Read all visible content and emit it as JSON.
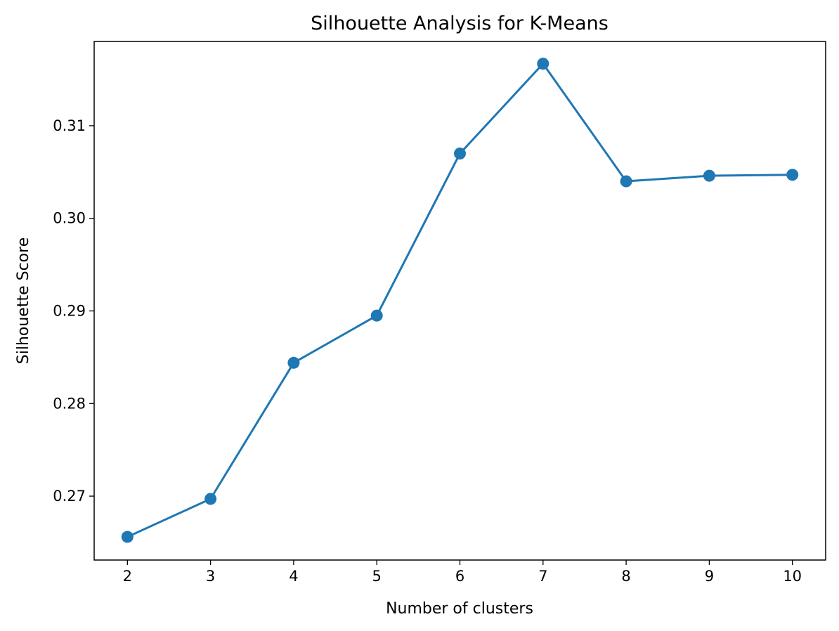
{
  "chart_data": {
    "type": "line",
    "title": "Silhouette Analysis for K-Means",
    "xlabel": "Number of clusters",
    "ylabel": "Silhouette Score",
    "x": [
      2,
      3,
      4,
      5,
      6,
      7,
      8,
      9,
      10
    ],
    "series": [
      {
        "values": [
          0.2656,
          0.2697,
          0.2844,
          0.2895,
          0.307,
          0.3167,
          0.304,
          0.3046,
          0.3047
        ],
        "color": "#1f77b4",
        "marker": "circle"
      }
    ],
    "xticks": [
      "2",
      "3",
      "4",
      "5",
      "6",
      "7",
      "8",
      "9",
      "10"
    ],
    "yticks": [
      "0.27",
      "0.28",
      "0.29",
      "0.30",
      "0.31"
    ],
    "xlim": [
      1.6,
      10.4
    ],
    "ylim": [
      0.2631,
      0.3191
    ],
    "grid": false,
    "legend": "none"
  }
}
